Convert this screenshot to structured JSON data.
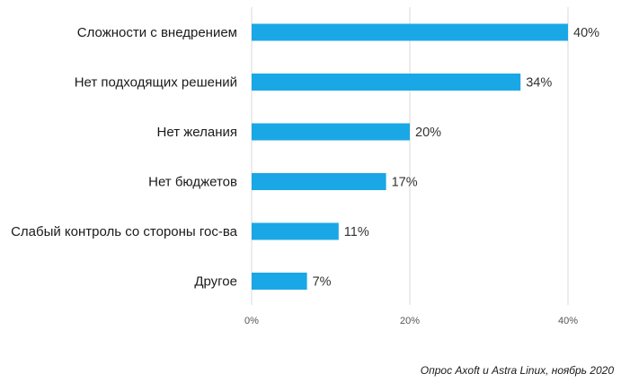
{
  "chart_data": {
    "type": "bar",
    "orientation": "horizontal",
    "categories": [
      "Сложности с внедрением",
      "Нет подходящих решений",
      "Нет желания",
      "Нет бюджетов",
      "Слабый контроль со стороны гос-ва",
      "Другое"
    ],
    "values": [
      40,
      34,
      20,
      17,
      11,
      7
    ],
    "value_labels": [
      "40%",
      "34%",
      "20%",
      "17%",
      "11%",
      "7%"
    ],
    "xlim": [
      0,
      40
    ],
    "xticks": [
      0,
      20,
      40
    ],
    "xtick_labels": [
      "0%",
      "20%",
      "40%"
    ],
    "grid": "vertical",
    "bar_color": "#1aa7e6",
    "grid_color": "#d9d9d9"
  },
  "caption": "Опрос Axoft и Astra Linux, ноябрь 2020"
}
